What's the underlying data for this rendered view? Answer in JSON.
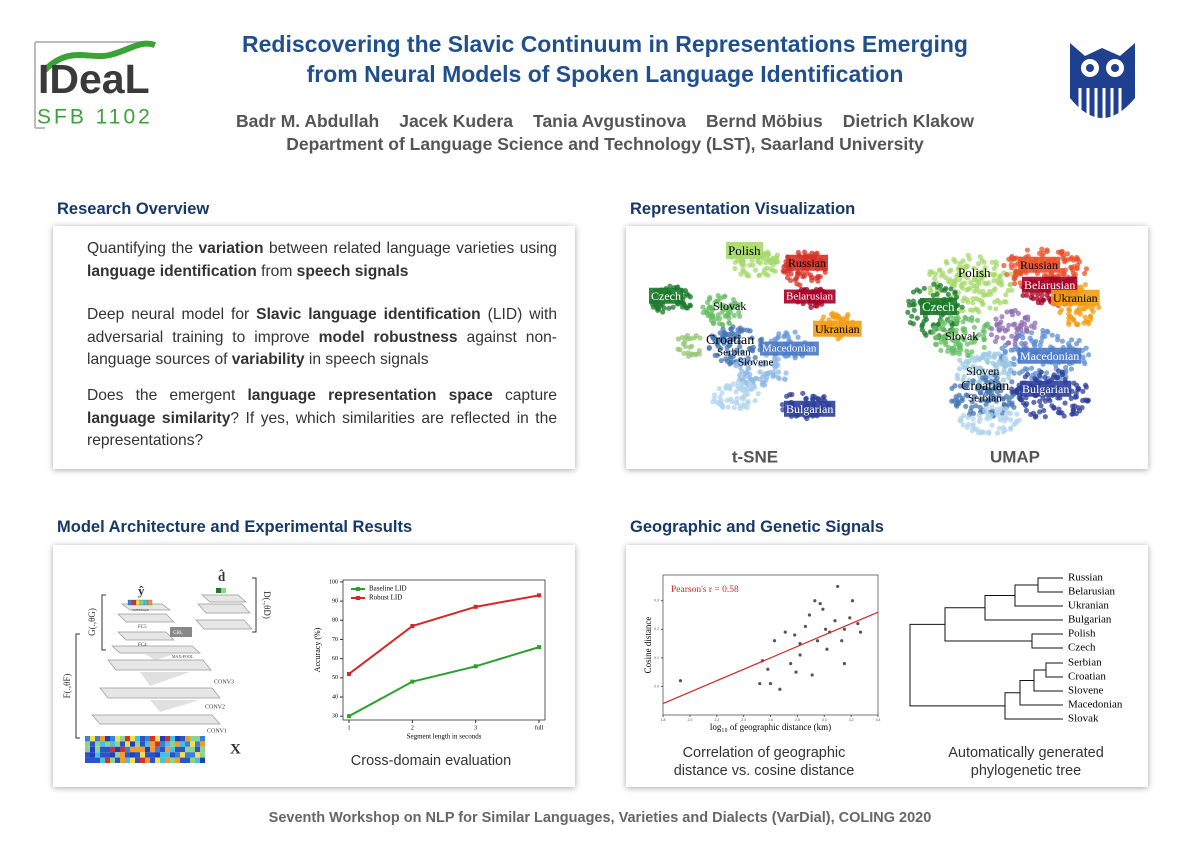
{
  "header": {
    "logo_text": "IDeaL",
    "logo_subtext": "SFB 1102",
    "title": [
      "Rediscovering the Slavic Continuum in Representations Emerging",
      "from Neural Models of Spoken Language Identification"
    ],
    "authors": [
      "Badr M. Abdullah",
      "Jacek Kudera",
      "Tania Avgustinova",
      "Bernd Möbius",
      "Dietrich Klakow"
    ],
    "affiliation": "Department of Language Science and Technology (LST), Saarland University"
  },
  "research_overview": {
    "title": "Research Overview",
    "items": [
      [
        {
          "text": "Quantifying the "
        },
        {
          "text": "variation",
          "bold": true
        },
        {
          "text": " between related language varieties using "
        },
        {
          "text": "language identification",
          "bold": true
        },
        {
          "text": " from "
        },
        {
          "text": "speech signals",
          "bold": true
        }
      ],
      [
        {
          "text": "Deep neural model for "
        },
        {
          "text": "Slavic language identification",
          "bold": true
        },
        {
          "text": " (LID) with adversarial training to improve "
        },
        {
          "text": "model robustness",
          "bold": true
        },
        {
          "text": " against non-language sources of "
        },
        {
          "text": "variability",
          "bold": true
        },
        {
          "text": " in speech signals"
        }
      ],
      [
        {
          "text": "Does the emergent "
        },
        {
          "text": "language representation space",
          "bold": true
        },
        {
          "text": " capture "
        },
        {
          "text": "language similarity",
          "bold": true
        },
        {
          "text": "? If yes, which similarities are reflected in the representations?"
        }
      ]
    ]
  },
  "representation": {
    "title": "Representation Visualization",
    "tsne": {
      "caption": "t-SNE",
      "labels": [
        "Polish",
        "Russian",
        "Czech",
        "Slovak",
        "Belarusian",
        "Ukranian",
        "Croatian",
        "Serbian",
        "Macedonian",
        "Slovene",
        "Bulgarian"
      ]
    },
    "umap": {
      "caption": "UMAP",
      "labels": [
        "Polish",
        "Russian",
        "Belarusian",
        "Ukranian",
        "Czech",
        "Slovak",
        "Macedonian",
        "Sloven",
        "Croatian",
        "Bulgarian",
        "Serbian"
      ]
    }
  },
  "model": {
    "title": "Model Architecture and Experimental Results",
    "diagram": {
      "y_hat": "ŷ",
      "d_hat": "d̂",
      "g": "G(.,θG)",
      "d": "D(.,θD)",
      "f": "F(.,θF)",
      "softmax": "SOFTMAX",
      "fc5": "FC5",
      "fc4": "FC4",
      "grl": "GRL",
      "maxpool": "MAX-POOL",
      "conv3": "CONV3",
      "conv2": "CONV2",
      "conv1": "CONV1",
      "x": "X"
    },
    "caption": "Cross-domain evaluation"
  },
  "geographic": {
    "title": "Geographic and Genetic Signals",
    "scatter_caption": [
      "Correlation of geographic",
      "distance vs. cosine distance"
    ],
    "tree_labels": [
      "Russian",
      "Belarusian",
      "Ukranian",
      "Bulgarian",
      "Polish",
      "Czech",
      "Serbian",
      "Croatian",
      "Slovene",
      "Macedonian",
      "Slovak"
    ],
    "tree_caption": [
      "Automatically generated",
      "phylogenetic tree"
    ]
  },
  "chart_data": [
    {
      "type": "line",
      "x_label": "Segment length in seconds",
      "y_label": "Accuracy (%)",
      "categories": [
        "1",
        "2",
        "3",
        "full"
      ],
      "series": [
        {
          "name": "Baseline LID",
          "color": "#2ca02c",
          "values": [
            30,
            48,
            56,
            66
          ]
        },
        {
          "name": "Robust LID",
          "color": "#d62728",
          "values": [
            52,
            77,
            87,
            93
          ]
        }
      ],
      "ylim": [
        28,
        101
      ],
      "yticks": [
        30,
        40,
        50,
        60,
        70,
        80,
        90,
        100
      ],
      "legend": "upper left"
    },
    {
      "type": "scatter",
      "annotation": "Pearson's r = 0.58",
      "x_label": "log₁₀ of geographic distance (km)",
      "y_label": "Cosine distance",
      "x": [
        1.93,
        2.54,
        2.6,
        2.52,
        2.58,
        2.63,
        2.71,
        2.78,
        2.82,
        2.86,
        2.89,
        2.93,
        2.97,
        2.99,
        3.01,
        3.04,
        3.08,
        3.1,
        3.13,
        3.15,
        3.19,
        3.21,
        3.25,
        3.27,
        3.15,
        2.91,
        2.82,
        2.75,
        2.67,
        2.79,
        2.95,
        3.02
      ],
      "values": [
        0.02,
        0.09,
        0.01,
        0.01,
        0.06,
        0.16,
        0.19,
        0.18,
        0.15,
        0.21,
        0.25,
        0.3,
        0.29,
        0.27,
        0.2,
        0.19,
        0.23,
        0.35,
        0.16,
        0.2,
        0.24,
        0.3,
        0.22,
        0.19,
        0.08,
        0.04,
        0.11,
        0.08,
        -0.01,
        0.05,
        0.16,
        0.13
      ],
      "color": "#555555",
      "fit": {
        "x": [
          1.8,
          3.4
        ],
        "values": [
          -0.06,
          0.26
        ],
        "color": "#d62728"
      },
      "xlim": [
        1.8,
        3.4
      ],
      "ylim": [
        -0.1,
        0.39
      ],
      "xticks": [
        1.8,
        {
          "value": 2,
          "label": "2.0"
        },
        2.2,
        2.4,
        2.6,
        2.8,
        {
          "value": 3,
          "label": "3.0"
        },
        3.2,
        3.4
      ],
      "yticks": [
        {
          "value": 0,
          "label": "0.0"
        },
        0.1,
        0.2,
        0.3
      ]
    }
  ],
  "footer": "Seventh Workshop on NLP for Similar Languages, Varieties and Dialects (VarDial), COLING 2020"
}
